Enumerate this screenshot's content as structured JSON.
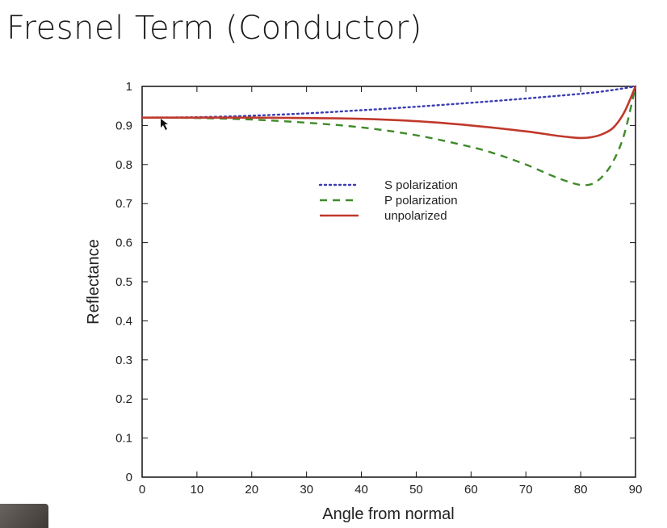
{
  "slide": {
    "title": "Fresnel Term (Conductor)"
  },
  "chart_data": {
    "type": "line",
    "title": "",
    "xlabel": "Angle from normal",
    "ylabel": "Reflectance",
    "xlim": [
      0,
      90
    ],
    "ylim": [
      0,
      1
    ],
    "xticks": [
      0,
      10,
      20,
      30,
      40,
      50,
      60,
      70,
      80,
      90
    ],
    "yticks": [
      0,
      0.1,
      0.2,
      0.3,
      0.4,
      0.5,
      0.6,
      0.7,
      0.8,
      0.9,
      1
    ],
    "ytick_labels": [
      "0",
      "0.1",
      "0.2",
      "0.3",
      "0.4",
      "0.5",
      "0.6",
      "0.7",
      "0.8",
      "0.9",
      "1"
    ],
    "grid": false,
    "legend_position": "upper-middle",
    "series": [
      {
        "name": "S polarization",
        "style": "dotted",
        "color": "#3b3bb3",
        "x": [
          0,
          10,
          20,
          30,
          40,
          50,
          60,
          70,
          80,
          85,
          90
        ],
        "y": [
          0.92,
          0.921,
          0.925,
          0.931,
          0.939,
          0.948,
          0.958,
          0.969,
          0.981,
          0.989,
          1.0
        ]
      },
      {
        "name": "P polarization",
        "style": "dashed",
        "color": "#3f8a2a",
        "x": [
          0,
          10,
          20,
          30,
          40,
          50,
          60,
          65,
          70,
          75,
          78,
          80,
          82,
          84,
          86,
          88,
          90
        ],
        "y": [
          0.92,
          0.919,
          0.915,
          0.907,
          0.895,
          0.875,
          0.845,
          0.825,
          0.8,
          0.77,
          0.755,
          0.748,
          0.75,
          0.77,
          0.81,
          0.88,
          1.0
        ]
      },
      {
        "name": "unpolarized",
        "style": "solid",
        "color": "#c0392b",
        "x": [
          0,
          10,
          20,
          30,
          40,
          50,
          60,
          70,
          75,
          78,
          80,
          82,
          84,
          86,
          88,
          90
        ],
        "y": [
          0.92,
          0.92,
          0.92,
          0.919,
          0.917,
          0.911,
          0.9,
          0.885,
          0.875,
          0.87,
          0.868,
          0.87,
          0.878,
          0.895,
          0.935,
          1.0
        ]
      }
    ]
  }
}
